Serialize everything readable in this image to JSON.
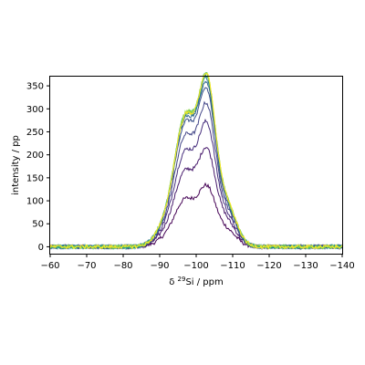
{
  "chart_data": {
    "type": "line",
    "title": "",
    "xlabel_prefix": "δ ",
    "xlabel_sup": "29",
    "xlabel_suffix": "Si / ppm",
    "ylabel": "intensity / pp",
    "xlim": [
      -60,
      -140
    ],
    "ylim": [
      -15,
      370
    ],
    "x_reversed": true,
    "grid": false,
    "legend": "none",
    "xticks": [
      -60,
      -70,
      -80,
      -90,
      -100,
      -110,
      -120,
      -130,
      -140
    ],
    "yticks": [
      0,
      50,
      100,
      150,
      200,
      250,
      300,
      350
    ],
    "noise_amplitude": 4,
    "series": [
      {
        "color": "#440154",
        "peak1": 110,
        "dip": 103,
        "peak2": 128,
        "shoulder": 45,
        "width_scale": 1.0
      },
      {
        "color": "#481a6c",
        "peak1": 175,
        "dip": 158,
        "peak2": 208,
        "shoulder": 68,
        "width_scale": 1.0
      },
      {
        "color": "#472f7d",
        "peak1": 220,
        "dip": 200,
        "peak2": 262,
        "shoulder": 80,
        "width_scale": 1.0
      },
      {
        "color": "#414487",
        "peak1": 255,
        "dip": 230,
        "peak2": 300,
        "shoulder": 92,
        "width_scale": 1.0
      },
      {
        "color": "#3b528b",
        "peak1": 285,
        "dip": 258,
        "peak2": 330,
        "shoulder": 100,
        "width_scale": 1.0
      },
      {
        "color": "#31688e",
        "peak1": 295,
        "dip": 266,
        "peak2": 345,
        "shoulder": 105,
        "width_scale": 1.0
      },
      {
        "color": "#2a788e",
        "peak1": 300,
        "dip": 272,
        "peak2": 352,
        "shoulder": 108,
        "width_scale": 1.0
      },
      {
        "color": "#21918c",
        "peak1": 302,
        "dip": 276,
        "peak2": 358,
        "shoulder": 110,
        "width_scale": 1.0
      },
      {
        "color": "#35b779",
        "peak1": 303,
        "dip": 278,
        "peak2": 362,
        "shoulder": 111,
        "width_scale": 1.0
      },
      {
        "color": "#90d743",
        "peak1": 304,
        "dip": 280,
        "peak2": 364,
        "shoulder": 112,
        "width_scale": 1.0
      },
      {
        "color": "#fde725",
        "peak1": 300,
        "dip": 281,
        "peak2": 365,
        "shoulder": 112,
        "width_scale": 1.0
      }
    ]
  }
}
